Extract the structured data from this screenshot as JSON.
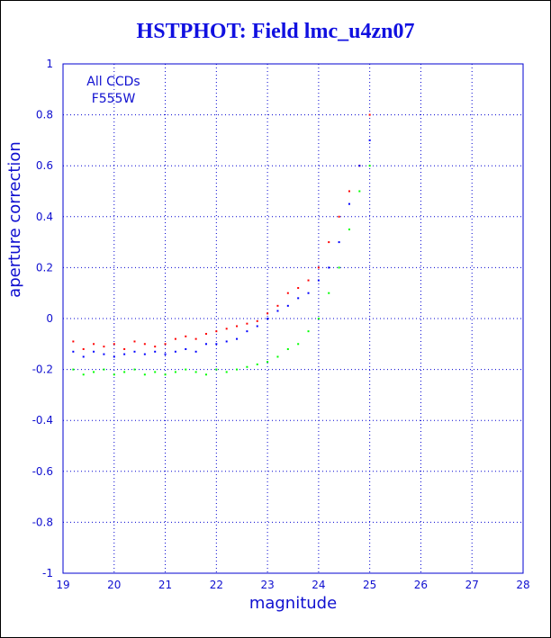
{
  "title": "HSTPHOT: Field lmc_u4zn07",
  "chart_data": {
    "type": "scatter",
    "title": "HSTPHOT: Field lmc_u4zn07",
    "xlabel": "magnitude",
    "ylabel": "aperture correction",
    "xlim": [
      19,
      28
    ],
    "ylim": [
      -1,
      1
    ],
    "x_ticks": [
      "19",
      "20",
      "21",
      "22",
      "23",
      "24",
      "25",
      "26",
      "27",
      "28"
    ],
    "y_ticks": [
      "-1",
      "-0.8",
      "-0.6",
      "-0.4",
      "-0.2",
      "0",
      "0.2",
      "0.4",
      "0.6",
      "0.8",
      "1"
    ],
    "grid": true,
    "annotations": [
      "All CCDs",
      "F555W"
    ],
    "series": [
      {
        "color": "#ff0000",
        "points": [
          [
            19.2,
            -0.09
          ],
          [
            19.4,
            -0.12
          ],
          [
            19.6,
            -0.1
          ],
          [
            19.8,
            -0.11
          ],
          [
            20.0,
            -0.1
          ],
          [
            20.2,
            -0.12
          ],
          [
            20.4,
            -0.09
          ],
          [
            20.6,
            -0.1
          ],
          [
            20.8,
            -0.11
          ],
          [
            21.0,
            -0.1
          ],
          [
            21.2,
            -0.08
          ],
          [
            21.4,
            -0.07
          ],
          [
            21.6,
            -0.08
          ],
          [
            21.8,
            -0.06
          ],
          [
            22.0,
            -0.05
          ],
          [
            22.2,
            -0.04
          ],
          [
            22.4,
            -0.03
          ],
          [
            22.6,
            -0.02
          ],
          [
            22.8,
            -0.01
          ],
          [
            23.0,
            0.02
          ],
          [
            23.2,
            0.05
          ],
          [
            23.4,
            0.1
          ],
          [
            23.6,
            0.12
          ],
          [
            23.8,
            0.15
          ],
          [
            24.0,
            0.2
          ],
          [
            24.2,
            0.3
          ],
          [
            24.4,
            0.4
          ],
          [
            24.6,
            0.5
          ],
          [
            24.8,
            0.6
          ],
          [
            25.0,
            0.8
          ]
        ]
      },
      {
        "color": "#0000ff",
        "points": [
          [
            19.2,
            -0.13
          ],
          [
            19.4,
            -0.15
          ],
          [
            19.6,
            -0.13
          ],
          [
            19.8,
            -0.14
          ],
          [
            20.0,
            -0.15
          ],
          [
            20.2,
            -0.14
          ],
          [
            20.4,
            -0.13
          ],
          [
            20.6,
            -0.14
          ],
          [
            20.8,
            -0.13
          ],
          [
            21.0,
            -0.14
          ],
          [
            21.2,
            -0.13
          ],
          [
            21.4,
            -0.12
          ],
          [
            21.6,
            -0.13
          ],
          [
            21.8,
            -0.1
          ],
          [
            22.0,
            -0.1
          ],
          [
            22.2,
            -0.09
          ],
          [
            22.4,
            -0.08
          ],
          [
            22.6,
            -0.05
          ],
          [
            22.8,
            -0.03
          ],
          [
            23.0,
            0.0
          ],
          [
            23.2,
            0.03
          ],
          [
            23.4,
            0.05
          ],
          [
            23.6,
            0.08
          ],
          [
            23.8,
            0.1
          ],
          [
            24.0,
            0.15
          ],
          [
            24.2,
            0.2
          ],
          [
            24.4,
            0.3
          ],
          [
            24.6,
            0.45
          ],
          [
            24.8,
            0.6
          ],
          [
            25.0,
            0.7
          ]
        ]
      },
      {
        "color": "#00ff00",
        "points": [
          [
            19.2,
            -0.2
          ],
          [
            19.4,
            -0.22
          ],
          [
            19.6,
            -0.21
          ],
          [
            19.8,
            -0.2
          ],
          [
            20.0,
            -0.22
          ],
          [
            20.2,
            -0.21
          ],
          [
            20.4,
            -0.2
          ],
          [
            20.6,
            -0.22
          ],
          [
            20.8,
            -0.21
          ],
          [
            21.0,
            -0.22
          ],
          [
            21.2,
            -0.21
          ],
          [
            21.4,
            -0.2
          ],
          [
            21.6,
            -0.21
          ],
          [
            21.8,
            -0.22
          ],
          [
            22.0,
            -0.2
          ],
          [
            22.2,
            -0.21
          ],
          [
            22.4,
            -0.2
          ],
          [
            22.6,
            -0.19
          ],
          [
            22.8,
            -0.18
          ],
          [
            23.0,
            -0.17
          ],
          [
            23.2,
            -0.15
          ],
          [
            23.4,
            -0.12
          ],
          [
            23.6,
            -0.1
          ],
          [
            23.8,
            -0.05
          ],
          [
            24.0,
            0.0
          ],
          [
            24.2,
            0.1
          ],
          [
            24.4,
            0.2
          ],
          [
            24.6,
            0.35
          ],
          [
            24.8,
            0.5
          ],
          [
            25.0,
            0.6
          ]
        ]
      }
    ]
  }
}
